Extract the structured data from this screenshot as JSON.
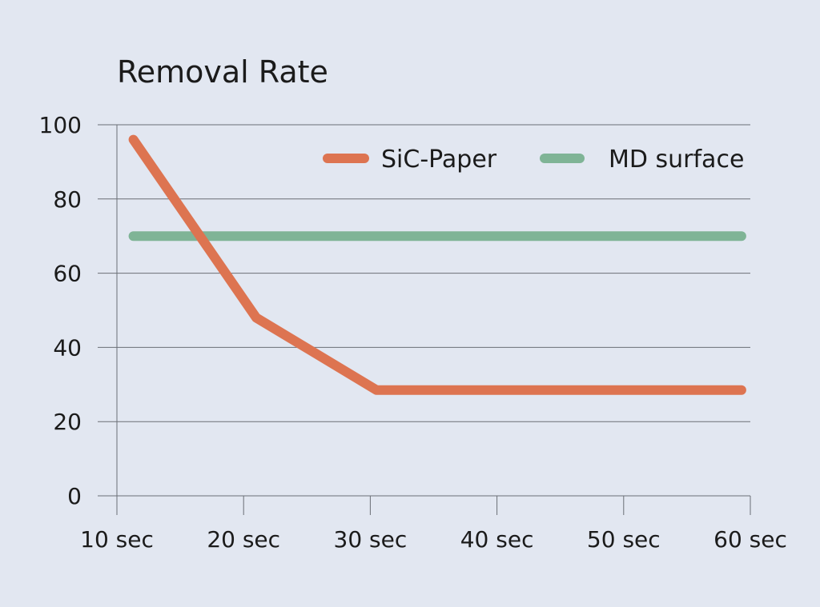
{
  "chart_data": {
    "type": "line",
    "title": "Removal Rate",
    "xlabel": "",
    "ylabel": "",
    "categories": [
      "10 sec",
      "20 sec",
      "30 sec",
      "40 sec",
      "50 sec",
      "60 sec"
    ],
    "x_range": [
      10,
      60
    ],
    "ylim": [
      0,
      100
    ],
    "yticks": [
      0,
      20,
      40,
      60,
      80,
      100
    ],
    "grid": true,
    "legend_position": "top-right",
    "series": [
      {
        "name": "SiC-Paper",
        "color": "#dd7451",
        "points": [
          {
            "x": 11.3,
            "y": 96
          },
          {
            "x": 21.0,
            "y": 48
          },
          {
            "x": 30.5,
            "y": 28.5
          },
          {
            "x": 59.3,
            "y": 28.5
          }
        ]
      },
      {
        "name": "MD surface",
        "color": "#7fb496",
        "points": [
          {
            "x": 11.3,
            "y": 70
          },
          {
            "x": 59.3,
            "y": 70
          }
        ]
      }
    ]
  }
}
